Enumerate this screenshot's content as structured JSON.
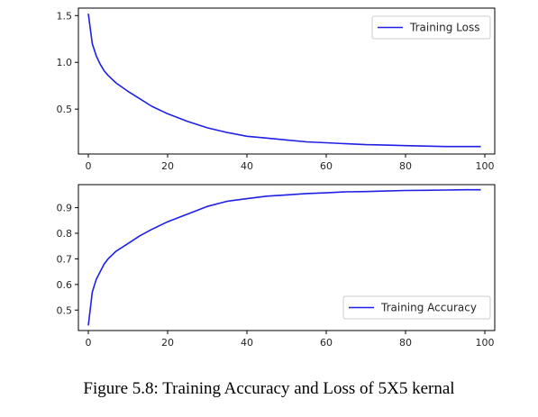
{
  "caption": "Figure 5.8: Training Accuracy and Loss of 5X5 kernal",
  "colors": {
    "line": "#1f1fe6",
    "axes": "#000000",
    "text": "#262626"
  },
  "chart_data": [
    {
      "type": "line",
      "title": "",
      "xlabel": "",
      "ylabel": "",
      "xlim": [
        -2.5,
        102.5
      ],
      "ylim": [
        0.02,
        1.58
      ],
      "xticks": [
        0,
        20,
        40,
        60,
        80,
        100
      ],
      "xtick_labels": [
        "0",
        "20",
        "40",
        "60",
        "80",
        "100"
      ],
      "yticks": [
        0.5,
        1.0,
        1.5
      ],
      "ytick_labels": [
        "0.5",
        "1.0",
        "1.5"
      ],
      "grid": false,
      "legend": {
        "position": "top-right",
        "entries": [
          "Training Loss"
        ]
      },
      "series": [
        {
          "name": "Training Loss",
          "x": [
            0,
            1,
            2,
            3,
            4,
            5,
            7,
            10,
            13,
            16,
            20,
            25,
            30,
            35,
            40,
            45,
            50,
            55,
            60,
            65,
            70,
            75,
            80,
            85,
            90,
            95,
            99
          ],
          "y": [
            1.52,
            1.2,
            1.07,
            0.98,
            0.91,
            0.86,
            0.78,
            0.69,
            0.61,
            0.53,
            0.45,
            0.37,
            0.3,
            0.25,
            0.21,
            0.19,
            0.17,
            0.15,
            0.14,
            0.13,
            0.12,
            0.115,
            0.11,
            0.105,
            0.1,
            0.1,
            0.1
          ]
        }
      ]
    },
    {
      "type": "line",
      "title": "",
      "xlabel": "",
      "ylabel": "",
      "xlim": [
        -2.5,
        102.5
      ],
      "ylim": [
        0.42,
        0.99
      ],
      "xticks": [
        0,
        20,
        40,
        60,
        80,
        100
      ],
      "xtick_labels": [
        "0",
        "20",
        "40",
        "60",
        "80",
        "100"
      ],
      "yticks": [
        0.5,
        0.6,
        0.7,
        0.8,
        0.9
      ],
      "ytick_labels": [
        "0.5",
        "0.6",
        "0.7",
        "0.8",
        "0.9"
      ],
      "grid": false,
      "legend": {
        "position": "bottom-right",
        "entries": [
          "Training Accuracy"
        ]
      },
      "series": [
        {
          "name": "Training Accuracy",
          "x": [
            0,
            1,
            2,
            3,
            4,
            5,
            7,
            10,
            13,
            16,
            20,
            25,
            30,
            35,
            40,
            45,
            50,
            55,
            60,
            65,
            70,
            75,
            80,
            85,
            90,
            95,
            99
          ],
          "y": [
            0.44,
            0.57,
            0.62,
            0.65,
            0.68,
            0.7,
            0.73,
            0.76,
            0.79,
            0.815,
            0.845,
            0.875,
            0.905,
            0.925,
            0.935,
            0.945,
            0.95,
            0.955,
            0.958,
            0.962,
            0.963,
            0.965,
            0.967,
            0.968,
            0.969,
            0.97,
            0.97
          ]
        }
      ]
    }
  ]
}
